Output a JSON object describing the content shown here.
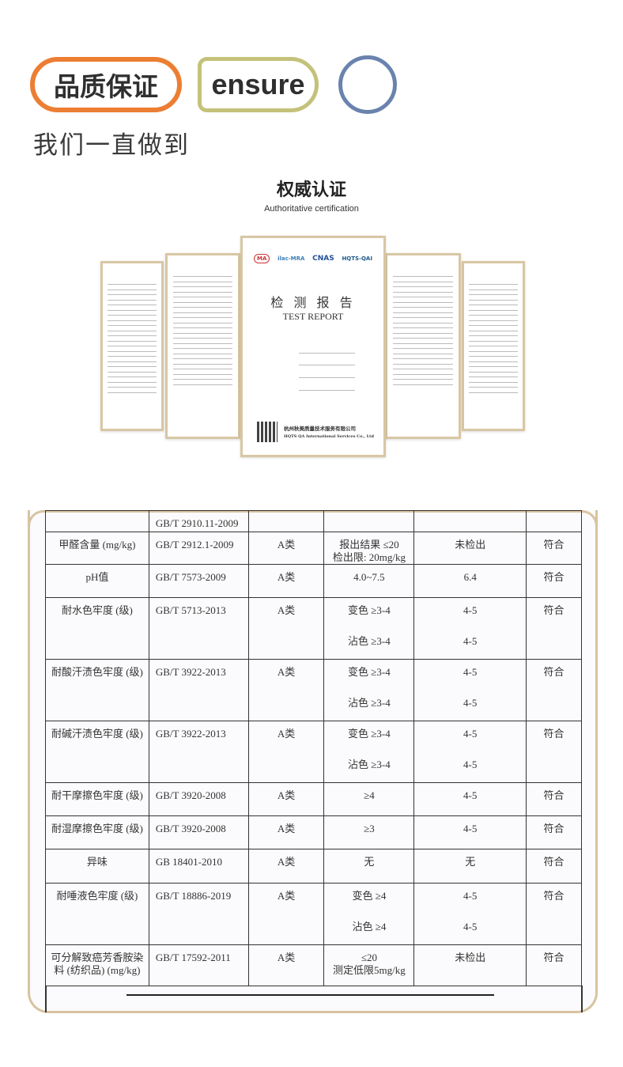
{
  "header": {
    "badge_cn": "品质保证",
    "badge_en": "ensure",
    "slogan": "我们一直做到"
  },
  "section": {
    "title": "权威认证",
    "subtitle": "Authoritative certification"
  },
  "report": {
    "logos": [
      "MA",
      "ilac-MRA",
      "CNAS",
      "HQTS-QAI"
    ],
    "title_cn": "检 测 报 告",
    "title_en": "TEST REPORT",
    "company_cn": "杭州秋美质量技术服务有限公司",
    "company_en": "HQTS QA International Services Co., Ltd"
  },
  "colors": {
    "orange": "#ec7e33",
    "olive": "#c4c27a",
    "blue": "#6a83ad",
    "frame": "#d8c3a0"
  },
  "table": {
    "rows": [
      {
        "item": "",
        "std": "GB/T 2910.11-2009",
        "cls": "",
        "req": [
          ""
        ],
        "res": [
          ""
        ],
        "verdict": ""
      },
      {
        "item": "甲醛含量 (mg/kg)",
        "std": "GB/T 2912.1-2009",
        "cls": "A类",
        "req": [
          "报出结果 ≤20",
          "检出限: 20mg/kg"
        ],
        "res": [
          "未检出"
        ],
        "verdict": "符合"
      },
      {
        "item": "pH值",
        "std": "GB/T 7573-2009",
        "cls": "A类",
        "req": [
          "4.0~7.5"
        ],
        "res": [
          "6.4"
        ],
        "verdict": "符合"
      },
      {
        "item": "耐水色牢度 (级)",
        "std": "GB/T 5713-2013",
        "cls": "A类",
        "req": [
          "变色 ≥3-4",
          "沾色 ≥3-4"
        ],
        "res": [
          "4-5",
          "4-5"
        ],
        "verdict": "符合"
      },
      {
        "item": "耐酸汗渍色牢度 (级)",
        "std": "GB/T 3922-2013",
        "cls": "A类",
        "req": [
          "变色 ≥3-4",
          "沾色 ≥3-4"
        ],
        "res": [
          "4-5",
          "4-5"
        ],
        "verdict": "符合"
      },
      {
        "item": "耐碱汗渍色牢度 (级)",
        "std": "GB/T 3922-2013",
        "cls": "A类",
        "req": [
          "变色 ≥3-4",
          "沾色 ≥3-4"
        ],
        "res": [
          "4-5",
          "4-5"
        ],
        "verdict": "符合"
      },
      {
        "item": "耐干摩擦色牢度 (级)",
        "std": "GB/T 3920-2008",
        "cls": "A类",
        "req": [
          "≥4"
        ],
        "res": [
          "4-5"
        ],
        "verdict": "符合"
      },
      {
        "item": "耐湿摩擦色牢度 (级)",
        "std": "GB/T 3920-2008",
        "cls": "A类",
        "req": [
          "≥3"
        ],
        "res": [
          "4-5"
        ],
        "verdict": "符合"
      },
      {
        "item": "异味",
        "std": "GB 18401-2010",
        "cls": "A类",
        "req": [
          "无"
        ],
        "res": [
          "无"
        ],
        "verdict": "符合"
      },
      {
        "item": "耐唾液色牢度 (级)",
        "std": "GB/T 18886-2019",
        "cls": "A类",
        "req": [
          "变色 ≥4",
          "沾色 ≥4"
        ],
        "res": [
          "4-5",
          "4-5"
        ],
        "verdict": "符合"
      },
      {
        "item": "可分解致癌芳香胺染料 (纺织品) (mg/kg)",
        "std": "GB/T 17592-2011",
        "cls": "A类",
        "req": [
          "≤20",
          "测定低限5mg/kg"
        ],
        "res": [
          "未检出"
        ],
        "verdict": "符合"
      }
    ]
  }
}
